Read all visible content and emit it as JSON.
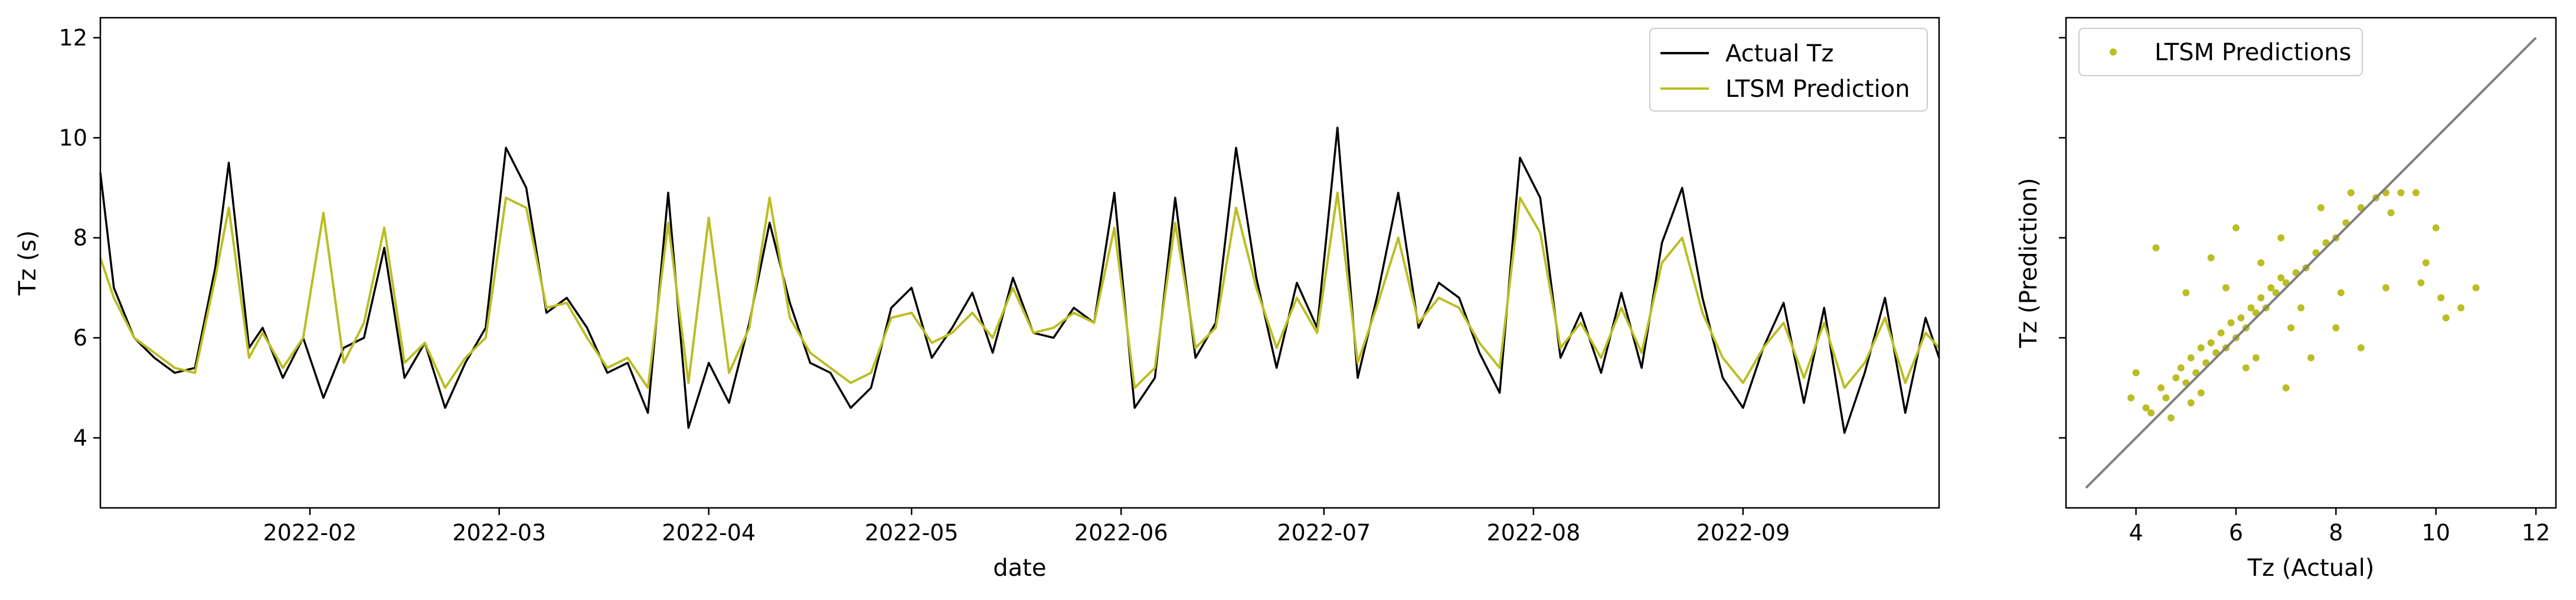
{
  "chart_data": [
    {
      "type": "line",
      "xlabel": "date",
      "ylabel": "Tz (s)",
      "xlim": [
        "2022-01-01",
        "2022-09-30"
      ],
      "ylim": [
        2.6,
        12.4
      ],
      "yticks": [
        4,
        6,
        8,
        10,
        12
      ],
      "xticks": [
        "2022-02-01",
        "2022-03-01",
        "2022-04-01",
        "2022-05-01",
        "2022-06-01",
        "2022-07-01",
        "2022-08-01",
        "2022-09-01"
      ],
      "xtick_labels": [
        "2022-02",
        "2022-03",
        "2022-04",
        "2022-05",
        "2022-06",
        "2022-07",
        "2022-08",
        "2022-09"
      ],
      "legend": {
        "position": "top-right",
        "entries": [
          "Actual Tz",
          "LTSM Prediction"
        ]
      },
      "grid": false,
      "series": [
        {
          "name": "Actual Tz",
          "color": "#000000",
          "x": [
            "2022-01-01",
            "2022-01-03",
            "2022-01-06",
            "2022-01-09",
            "2022-01-12",
            "2022-01-15",
            "2022-01-18",
            "2022-01-20",
            "2022-01-23",
            "2022-01-25",
            "2022-01-28",
            "2022-01-31",
            "2022-02-03",
            "2022-02-06",
            "2022-02-09",
            "2022-02-12",
            "2022-02-15",
            "2022-02-18",
            "2022-02-21",
            "2022-02-24",
            "2022-02-27",
            "2022-03-02",
            "2022-03-05",
            "2022-03-08",
            "2022-03-11",
            "2022-03-14",
            "2022-03-17",
            "2022-03-20",
            "2022-03-23",
            "2022-03-26",
            "2022-03-29",
            "2022-04-01",
            "2022-04-04",
            "2022-04-07",
            "2022-04-10",
            "2022-04-13",
            "2022-04-16",
            "2022-04-19",
            "2022-04-22",
            "2022-04-25",
            "2022-04-28",
            "2022-05-01",
            "2022-05-04",
            "2022-05-07",
            "2022-05-10",
            "2022-05-13",
            "2022-05-16",
            "2022-05-19",
            "2022-05-22",
            "2022-05-25",
            "2022-05-28",
            "2022-05-31",
            "2022-06-03",
            "2022-06-06",
            "2022-06-09",
            "2022-06-12",
            "2022-06-15",
            "2022-06-18",
            "2022-06-21",
            "2022-06-24",
            "2022-06-27",
            "2022-06-30",
            "2022-07-03",
            "2022-07-06",
            "2022-07-09",
            "2022-07-12",
            "2022-07-15",
            "2022-07-18",
            "2022-07-21",
            "2022-07-24",
            "2022-07-27",
            "2022-07-30",
            "2022-08-02",
            "2022-08-05",
            "2022-08-08",
            "2022-08-11",
            "2022-08-14",
            "2022-08-17",
            "2022-08-20",
            "2022-08-23",
            "2022-08-26",
            "2022-08-29",
            "2022-09-01",
            "2022-09-04",
            "2022-09-07",
            "2022-09-10",
            "2022-09-13",
            "2022-09-16",
            "2022-09-19",
            "2022-09-22",
            "2022-09-25",
            "2022-09-28",
            "2022-09-30"
          ],
          "y": [
            9.3,
            7.0,
            6.0,
            5.6,
            5.3,
            5.4,
            7.4,
            9.5,
            5.8,
            6.2,
            5.2,
            6.0,
            4.8,
            5.8,
            6.0,
            7.8,
            5.2,
            5.9,
            4.6,
            5.5,
            6.2,
            9.8,
            9.0,
            6.5,
            6.8,
            6.2,
            5.3,
            5.5,
            4.5,
            8.9,
            4.2,
            5.5,
            4.7,
            6.3,
            8.3,
            6.7,
            5.5,
            5.3,
            4.6,
            5.0,
            6.6,
            7.0,
            5.6,
            6.2,
            6.9,
            5.7,
            7.2,
            6.1,
            6.0,
            6.6,
            6.3,
            8.9,
            4.6,
            5.2,
            8.8,
            5.6,
            6.3,
            9.8,
            7.2,
            5.4,
            7.1,
            6.2,
            10.2,
            5.2,
            6.9,
            8.9,
            6.2,
            7.1,
            6.8,
            5.7,
            4.9,
            9.6,
            8.8,
            5.6,
            6.5,
            5.3,
            6.9,
            5.4,
            7.9,
            9.0,
            6.8,
            5.2,
            4.6,
            5.8,
            6.7,
            4.7,
            6.6,
            4.1,
            5.3,
            6.8,
            4.5,
            6.4,
            5.6
          ]
        },
        {
          "name": "LTSM Prediction",
          "color": "#bcbd22",
          "x": [
            "2022-01-01",
            "2022-01-03",
            "2022-01-06",
            "2022-01-09",
            "2022-01-12",
            "2022-01-15",
            "2022-01-18",
            "2022-01-20",
            "2022-01-23",
            "2022-01-25",
            "2022-01-28",
            "2022-01-31",
            "2022-02-03",
            "2022-02-06",
            "2022-02-09",
            "2022-02-12",
            "2022-02-15",
            "2022-02-18",
            "2022-02-21",
            "2022-02-24",
            "2022-02-27",
            "2022-03-02",
            "2022-03-05",
            "2022-03-08",
            "2022-03-11",
            "2022-03-14",
            "2022-03-17",
            "2022-03-20",
            "2022-03-23",
            "2022-03-26",
            "2022-03-29",
            "2022-04-01",
            "2022-04-04",
            "2022-04-07",
            "2022-04-10",
            "2022-04-13",
            "2022-04-16",
            "2022-04-19",
            "2022-04-22",
            "2022-04-25",
            "2022-04-28",
            "2022-05-01",
            "2022-05-04",
            "2022-05-07",
            "2022-05-10",
            "2022-05-13",
            "2022-05-16",
            "2022-05-19",
            "2022-05-22",
            "2022-05-25",
            "2022-05-28",
            "2022-05-31",
            "2022-06-03",
            "2022-06-06",
            "2022-06-09",
            "2022-06-12",
            "2022-06-15",
            "2022-06-18",
            "2022-06-21",
            "2022-06-24",
            "2022-06-27",
            "2022-06-30",
            "2022-07-03",
            "2022-07-06",
            "2022-07-09",
            "2022-07-12",
            "2022-07-15",
            "2022-07-18",
            "2022-07-21",
            "2022-07-24",
            "2022-07-27",
            "2022-07-30",
            "2022-08-02",
            "2022-08-05",
            "2022-08-08",
            "2022-08-11",
            "2022-08-14",
            "2022-08-17",
            "2022-08-20",
            "2022-08-23",
            "2022-08-26",
            "2022-08-29",
            "2022-09-01",
            "2022-09-04",
            "2022-09-07",
            "2022-09-10",
            "2022-09-13",
            "2022-09-16",
            "2022-09-19",
            "2022-09-22",
            "2022-09-25",
            "2022-09-28",
            "2022-09-30"
          ],
          "y": [
            7.6,
            6.8,
            6.0,
            5.7,
            5.4,
            5.3,
            7.2,
            8.6,
            5.6,
            6.1,
            5.4,
            6.0,
            8.5,
            5.5,
            6.3,
            8.2,
            5.5,
            5.9,
            5.0,
            5.6,
            6.0,
            8.8,
            8.6,
            6.6,
            6.7,
            6.0,
            5.4,
            5.6,
            5.0,
            8.3,
            5.1,
            8.4,
            5.3,
            6.2,
            8.8,
            6.4,
            5.7,
            5.4,
            5.1,
            5.3,
            6.4,
            6.5,
            5.9,
            6.1,
            6.5,
            6.0,
            7.0,
            6.1,
            6.2,
            6.5,
            6.3,
            8.2,
            5.0,
            5.4,
            8.3,
            5.8,
            6.2,
            8.6,
            7.0,
            5.8,
            6.8,
            6.1,
            8.9,
            5.5,
            6.7,
            8.0,
            6.3,
            6.8,
            6.6,
            5.9,
            5.4,
            8.8,
            8.1,
            5.8,
            6.3,
            5.6,
            6.6,
            5.7,
            7.5,
            8.0,
            6.5,
            5.6,
            5.1,
            5.8,
            6.3,
            5.2,
            6.3,
            5.0,
            5.5,
            6.4,
            5.1,
            6.1,
            5.8
          ]
        }
      ]
    },
    {
      "type": "scatter",
      "xlabel": "Tz (Actual)",
      "ylabel": "Tz (Prediction)",
      "xlim": [
        2.6,
        12.4
      ],
      "ylim": [
        2.6,
        12.4
      ],
      "xticks": [
        4,
        6,
        8,
        10,
        12
      ],
      "yticks_labeled": false,
      "legend": {
        "position": "top-left",
        "entries": [
          "LTSM Predictions"
        ]
      },
      "reference_line": {
        "x": [
          3,
          12
        ],
        "y": [
          3,
          12
        ],
        "color": "#808080"
      },
      "grid": false,
      "series": [
        {
          "name": "LTSM Predictions",
          "color": "#bcbd22",
          "x": [
            4.2,
            4.5,
            4.6,
            4.8,
            4.9,
            5.0,
            5.1,
            5.2,
            5.3,
            5.4,
            5.5,
            5.6,
            5.7,
            5.8,
            5.9,
            6.0,
            6.1,
            6.2,
            6.3,
            6.4,
            6.5,
            6.6,
            6.7,
            6.8,
            6.9,
            7.0,
            7.2,
            7.4,
            7.6,
            7.8,
            8.0,
            8.2,
            8.5,
            8.8,
            9.0,
            9.3,
            9.6,
            9.8,
            10.0,
            10.2,
            10.5,
            10.8,
            4.4,
            5.0,
            5.5,
            6.0,
            6.5,
            7.0,
            7.5,
            8.0,
            8.5,
            9.0,
            4.7,
            5.3,
            6.2,
            7.1,
            4.0,
            3.9,
            5.8,
            6.9,
            7.7,
            8.3,
            9.1,
            9.7,
            10.1,
            4.3,
            5.1,
            6.4,
            7.3,
            8.1
          ],
          "y": [
            4.6,
            5.0,
            4.8,
            5.2,
            5.4,
            5.1,
            5.6,
            5.3,
            5.8,
            5.5,
            5.9,
            5.7,
            6.1,
            5.8,
            6.3,
            6.0,
            6.4,
            6.2,
            6.6,
            6.5,
            6.8,
            6.6,
            7.0,
            6.9,
            7.2,
            7.1,
            7.3,
            7.4,
            7.7,
            7.9,
            8.0,
            8.3,
            8.6,
            8.8,
            8.9,
            8.9,
            8.9,
            7.5,
            8.2,
            6.4,
            6.6,
            7.0,
            7.8,
            6.9,
            7.6,
            8.2,
            7.5,
            5.0,
            5.6,
            6.2,
            5.8,
            7.0,
            4.4,
            4.9,
            5.4,
            6.2,
            5.3,
            4.8,
            7.0,
            8.0,
            8.6,
            8.9,
            8.5,
            7.1,
            6.8,
            4.5,
            4.7,
            5.6,
            6.6,
            6.9
          ]
        }
      ]
    }
  ]
}
